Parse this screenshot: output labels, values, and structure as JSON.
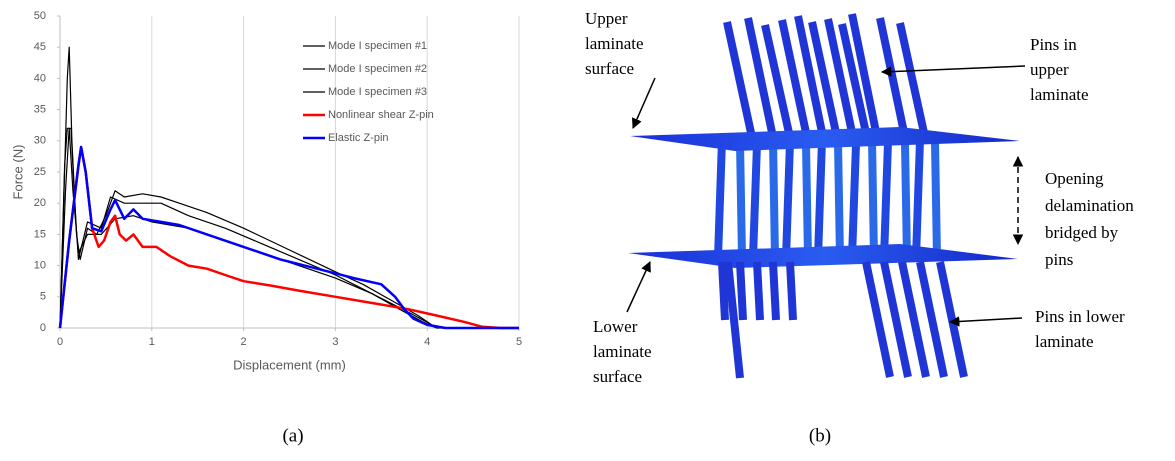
{
  "chart_data": {
    "type": "line",
    "xlabel": "Displacement (mm)",
    "ylabel": "Force (N)",
    "xlim": [
      0,
      5
    ],
    "xticks": [
      0,
      1,
      2,
      3,
      4,
      5
    ],
    "ylim": [
      0,
      50
    ],
    "yticks": [
      0,
      5,
      10,
      15,
      20,
      25,
      30,
      35,
      40,
      45,
      50
    ],
    "grid": "x",
    "legend": "upper right",
    "series": [
      {
        "name": "Mode I specimen #1",
        "color": "#000000",
        "x": [
          0,
          0.05,
          0.08,
          0.1,
          0.13,
          0.18,
          0.22,
          0.3,
          0.4,
          0.5,
          0.6,
          0.7,
          0.9,
          1.1,
          1.3,
          1.6,
          2,
          2.5,
          3,
          3.3,
          3.6,
          3.9,
          4.05,
          4.2,
          5
        ],
        "values": [
          0,
          25,
          40,
          45,
          30,
          15,
          11,
          16,
          15,
          18,
          22,
          21,
          21.5,
          21,
          20,
          18.5,
          16,
          12.5,
          9,
          7,
          4.5,
          2,
          0.5,
          0,
          0
        ]
      },
      {
        "name": "Mode I specimen #2",
        "color": "#000000",
        "x": [
          0,
          0.05,
          0.08,
          0.12,
          0.16,
          0.2,
          0.3,
          0.45,
          0.55,
          0.7,
          0.9,
          1.1,
          1.4,
          1.8,
          2.2,
          2.6,
          3,
          3.4,
          3.7,
          3.95,
          4.1,
          5
        ],
        "values": [
          0,
          26,
          32,
          32,
          20,
          11,
          17,
          16,
          21,
          20,
          20,
          20,
          18,
          16,
          13.5,
          11,
          8.5,
          5.5,
          3,
          1,
          0,
          0
        ]
      },
      {
        "name": "Mode I specimen #3",
        "color": "#000000",
        "x": [
          0,
          0.06,
          0.1,
          0.14,
          0.2,
          0.3,
          0.45,
          0.6,
          0.8,
          1,
          1.4,
          1.8,
          2.2,
          2.6,
          3,
          3.4,
          3.8,
          4.05,
          4.2,
          5
        ],
        "values": [
          0,
          22,
          32,
          22,
          12,
          15,
          15,
          17.5,
          18,
          17,
          16,
          14,
          12,
          10,
          8,
          5.5,
          2.5,
          0.5,
          0,
          0
        ]
      },
      {
        "name": "Nonlinear shear Z-pin",
        "color": "#ff0000",
        "x": [
          0,
          0.1,
          0.2,
          0.23,
          0.28,
          0.35,
          0.42,
          0.48,
          0.55,
          0.6,
          0.65,
          0.72,
          0.8,
          0.9,
          1.05,
          1.2,
          1.4,
          1.6,
          1.8,
          2,
          2.3,
          2.6,
          3,
          3.4,
          3.8,
          4.1,
          4.4,
          4.6,
          4.8,
          5
        ],
        "values": [
          0,
          14,
          26,
          29,
          25,
          16,
          13,
          14,
          17,
          18,
          15,
          14,
          15,
          13,
          13,
          11.5,
          10,
          9.5,
          8.5,
          7.5,
          6.8,
          6,
          5,
          4,
          3,
          2,
          1,
          0.2,
          0,
          0
        ]
      },
      {
        "name": "Elastic Z-pin",
        "color": "#0000ff",
        "x": [
          0,
          0.1,
          0.2,
          0.23,
          0.28,
          0.35,
          0.45,
          0.55,
          0.6,
          0.65,
          0.7,
          0.8,
          0.9,
          1.1,
          1.3,
          1.6,
          2,
          2.4,
          2.8,
          3.2,
          3.5,
          3.65,
          3.75,
          3.85,
          4,
          4.2,
          5
        ],
        "values": [
          0,
          14,
          26,
          29,
          25,
          16,
          15.5,
          19,
          20.5,
          19,
          17.5,
          19,
          17.5,
          17,
          16.5,
          15,
          13,
          11,
          9.5,
          8,
          7,
          5,
          3,
          1.5,
          0.5,
          0,
          0
        ]
      }
    ]
  },
  "diagram": {
    "labels": [
      {
        "lines": [
          "Upper",
          "laminate",
          "surface"
        ]
      },
      {
        "lines": [
          "Pins in",
          "upper",
          "laminate"
        ]
      },
      {
        "lines": [
          "Opening",
          "delamination",
          "bridged by",
          "pins"
        ]
      },
      {
        "lines": [
          "Lower",
          "laminate",
          "surface"
        ]
      },
      {
        "lines": [
          "Pins in lower",
          "laminate"
        ]
      }
    ]
  },
  "captions": [
    "(a)",
    "(b)"
  ]
}
